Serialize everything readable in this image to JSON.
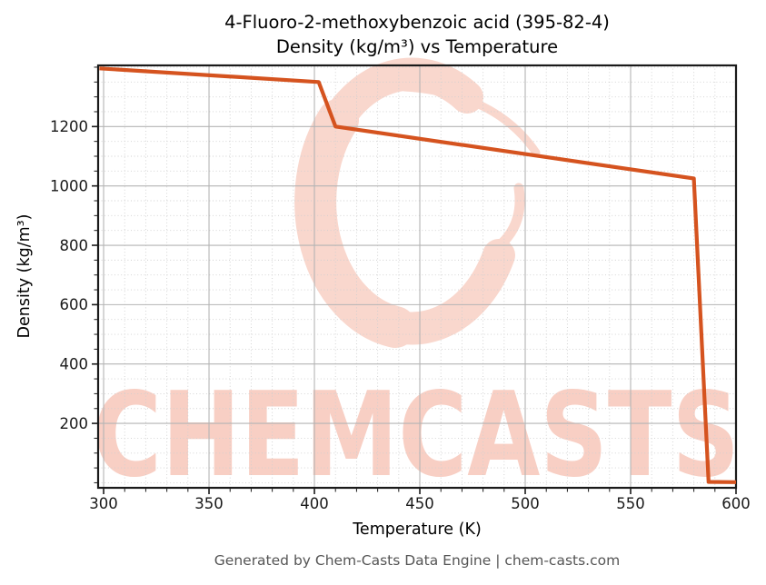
{
  "chart_data": {
    "type": "line",
    "title_line1": "4-Fluoro-2-methoxybenzoic acid (395-82-4)",
    "title_line2": "Density (kg/m³) vs Temperature",
    "xlabel": "Temperature (K)",
    "ylabel": "Density (kg/m³)",
    "series": [
      {
        "name": "density",
        "color": "#d5531f",
        "linewidth": 4.2,
        "x": [
          298,
          402,
          410,
          580,
          587,
          600
        ],
        "y": [
          1396,
          1350,
          1200,
          1025,
          3,
          2
        ]
      }
    ],
    "x_ticks": [
      300,
      350,
      400,
      450,
      500,
      550,
      600
    ],
    "y_ticks": [
      200,
      400,
      600,
      800,
      1000,
      1200
    ],
    "x_minor_step": 10,
    "y_minor_step": 50,
    "xlim": [
      297.4,
      600
    ],
    "ylim": [
      -17,
      1406
    ],
    "grid": {
      "major_color": "#b4b4b4",
      "minor_color": "#cfcfcf",
      "minor_style": "dotted"
    },
    "axis_color": "#1a1a1a",
    "legend": false
  },
  "footer": {
    "text": "Generated by Chem-Casts Data Engine | chem-casts.com",
    "color": "#555555"
  },
  "watermark": {
    "text": "CHEMCASTS",
    "logo": "chemcasts-c-swirl",
    "text_color": "#f8cfc4",
    "logo_color": "#f9d7cd"
  }
}
